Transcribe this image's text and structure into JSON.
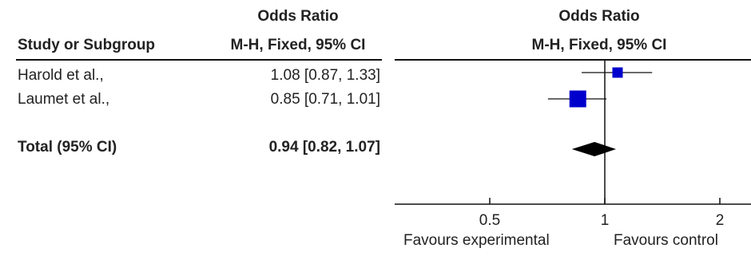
{
  "headers": {
    "study": "Study or Subgroup",
    "or_title": "Odds Ratio",
    "or_method": "M-H, Fixed, 95% CI",
    "plot_title": "Odds Ratio",
    "plot_method": "M-H, Fixed, 95% CI"
  },
  "studies": [
    {
      "name": "Harold et al.,",
      "ci_text": "1.08 [0.87, 1.33]"
    },
    {
      "name": "Laumet et al.,",
      "ci_text": "0.85 [0.71, 1.01]"
    }
  ],
  "total": {
    "name": "Total (95% CI)",
    "ci_text": "0.94 [0.82, 1.07]"
  },
  "footer": {
    "left": "Favours experimental",
    "right": "Favours control"
  },
  "chart_data": {
    "type": "forest",
    "x_scale": "log",
    "reference_line": 1,
    "xlim": [
      0.5,
      2
    ],
    "ticks": [
      {
        "value": 0.5,
        "label": "0.5"
      },
      {
        "value": 1,
        "label": "1"
      },
      {
        "value": 2,
        "label": "2"
      }
    ],
    "studies": [
      {
        "name": "Harold et al.,",
        "or": 1.08,
        "lower": 0.87,
        "upper": 1.33,
        "weight": "small"
      },
      {
        "name": "Laumet et al.,",
        "or": 0.85,
        "lower": 0.71,
        "upper": 1.01,
        "weight": "large"
      }
    ],
    "total": {
      "or": 0.94,
      "lower": 0.82,
      "upper": 1.07
    },
    "marker_color": "#0000cc",
    "diamond_color": "#000000"
  }
}
